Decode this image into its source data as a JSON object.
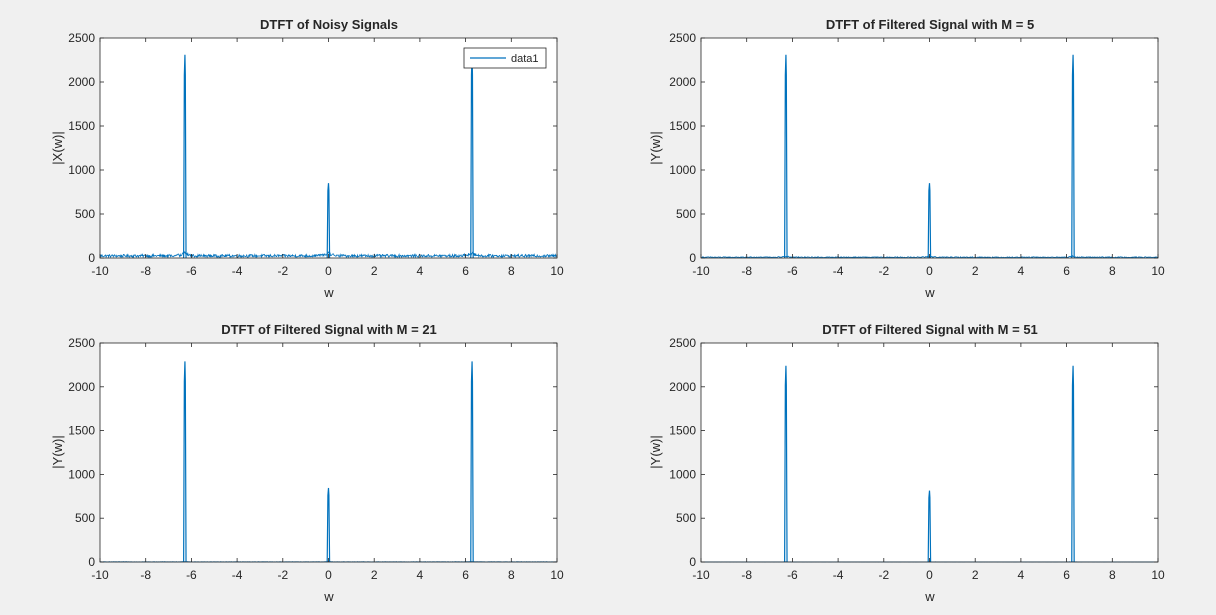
{
  "figure": {
    "background": "#f0f0f0",
    "axes_background": "#ffffff",
    "axis_color": "#262626",
    "line_color": "#0072bd"
  },
  "chart_data": [
    {
      "type": "line",
      "title": "DTFT of Noisy Signals",
      "xlabel": "w",
      "ylabel": "|X(w)|",
      "xlim": [
        -10,
        10
      ],
      "ylim": [
        0,
        2500
      ],
      "xticks": [
        -10,
        -8,
        -6,
        -4,
        -2,
        0,
        2,
        4,
        6,
        8,
        10
      ],
      "yticks": [
        0,
        500,
        1000,
        1500,
        2000,
        2500
      ],
      "legend": {
        "entries": [
          "data1"
        ],
        "position": "top-right"
      },
      "series": [
        {
          "name": "data1",
          "color": "#0072bd",
          "noise_floor": 35,
          "peaks": [
            {
              "w": -6.283,
              "value": 2310
            },
            {
              "w": 0,
              "value": 850
            },
            {
              "w": 6.283,
              "value": 2310
            }
          ]
        }
      ]
    },
    {
      "type": "line",
      "title": "DTFT of Filtered Signal with M = 5",
      "xlabel": "w",
      "ylabel": "|Y(w)|",
      "xlim": [
        -10,
        10
      ],
      "ylim": [
        0,
        2500
      ],
      "xticks": [
        -10,
        -8,
        -6,
        -4,
        -2,
        0,
        2,
        4,
        6,
        8,
        10
      ],
      "yticks": [
        0,
        500,
        1000,
        1500,
        2000,
        2500
      ],
      "series": [
        {
          "color": "#0072bd",
          "noise_floor": 12,
          "peaks": [
            {
              "w": -6.283,
              "value": 2310
            },
            {
              "w": 0,
              "value": 850
            },
            {
              "w": 6.283,
              "value": 2310
            }
          ]
        }
      ]
    },
    {
      "type": "line",
      "title": "DTFT of Filtered Signal with M = 21",
      "xlabel": "w",
      "ylabel": "|Y(w)|",
      "xlim": [
        -10,
        10
      ],
      "ylim": [
        0,
        2500
      ],
      "xticks": [
        -10,
        -8,
        -6,
        -4,
        -2,
        0,
        2,
        4,
        6,
        8,
        10
      ],
      "yticks": [
        0,
        500,
        1000,
        1500,
        2000,
        2500
      ],
      "series": [
        {
          "color": "#0072bd",
          "noise_floor": 3,
          "peaks": [
            {
              "w": -6.283,
              "value": 2290
            },
            {
              "w": 0,
              "value": 845
            },
            {
              "w": 6.283,
              "value": 2290
            }
          ]
        }
      ]
    },
    {
      "type": "line",
      "title": "DTFT of Filtered Signal with M = 51",
      "xlabel": "w",
      "ylabel": "|Y(w)|",
      "xlim": [
        -10,
        10
      ],
      "ylim": [
        0,
        2500
      ],
      "xticks": [
        -10,
        -8,
        -6,
        -4,
        -2,
        0,
        2,
        4,
        6,
        8,
        10
      ],
      "yticks": [
        0,
        500,
        1000,
        1500,
        2000,
        2500
      ],
      "series": [
        {
          "color": "#0072bd",
          "noise_floor": 1.5,
          "peaks": [
            {
              "w": -6.283,
              "value": 2240
            },
            {
              "w": 0,
              "value": 815
            },
            {
              "w": 6.283,
              "value": 2240
            }
          ]
        }
      ]
    }
  ]
}
